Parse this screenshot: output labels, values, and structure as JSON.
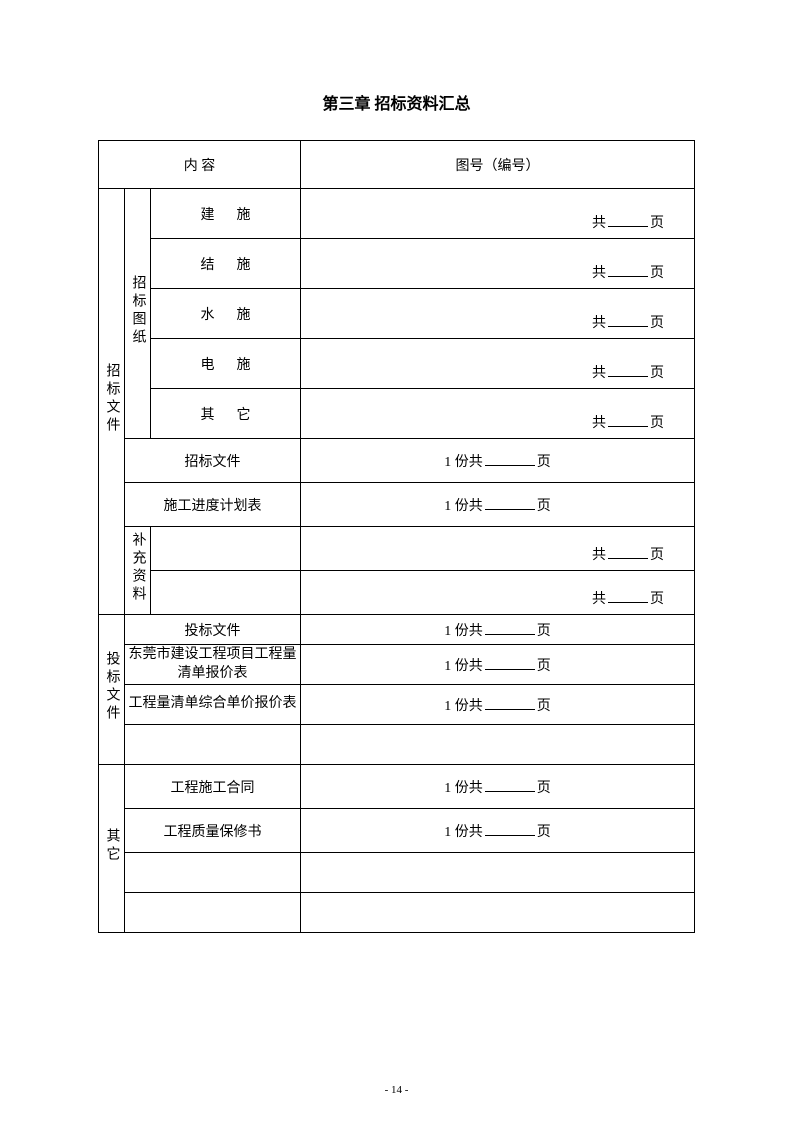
{
  "title": "第三章 招标资料汇总",
  "headers": {
    "content": "内 容",
    "number": "图号（编号）"
  },
  "sections": {
    "bidding_docs": {
      "label": "招标文件",
      "drawings": {
        "label": "招标图纸",
        "items": [
          "建施",
          "结施",
          "水施",
          "电施",
          "其它"
        ]
      },
      "doc_rows": [
        {
          "label": "招标文件",
          "text_prefix": "1 份共",
          "text_suffix": "页"
        },
        {
          "label": "施工进度计划表",
          "text_prefix": "1 份共",
          "text_suffix": "页"
        }
      ],
      "supplement_label": "补充资料"
    },
    "bid_submit": {
      "label": "投标文件",
      "rows": [
        {
          "label": "投标文件",
          "text_prefix": "1 份共",
          "text_suffix": "页"
        },
        {
          "label": "东莞市建设工程项目工程量清单报价表",
          "text_prefix": "1 份共",
          "text_suffix": "页"
        },
        {
          "label": "工程量清单综合单价报价表",
          "text_prefix": "1 份共",
          "text_suffix": "页"
        }
      ]
    },
    "other": {
      "label": "其它",
      "rows": [
        {
          "label": "工程施工合同",
          "text_prefix": "1 份共",
          "text_suffix": "页"
        },
        {
          "label": "工程质量保修书",
          "text_prefix": "1 份共",
          "text_suffix": "页"
        }
      ]
    }
  },
  "fill": {
    "prefix": "共",
    "suffix": "页"
  },
  "page_number": "- 14 -"
}
